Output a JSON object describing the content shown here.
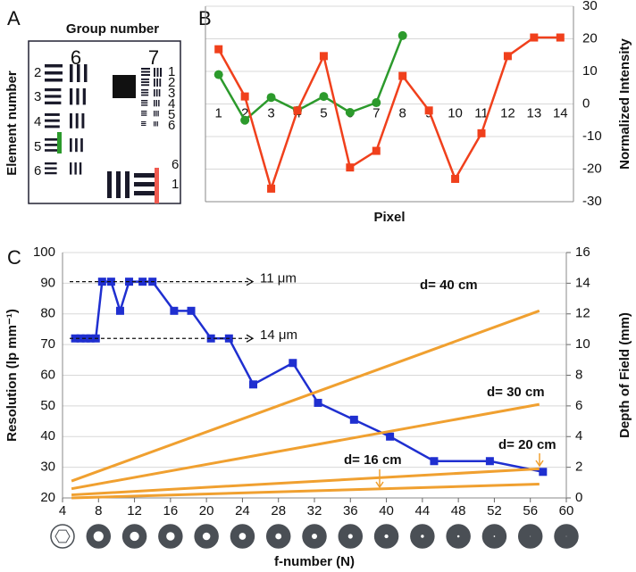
{
  "panel_a": {
    "label": "A",
    "title": "Group number",
    "y_label": "Element number",
    "groups": [
      "6",
      "7"
    ],
    "elements_6": [
      "2",
      "3",
      "4",
      "5",
      "6"
    ],
    "elements_7": [
      "1",
      "2",
      "3",
      "4",
      "5",
      "6"
    ],
    "elements_corner": [
      "6",
      "1"
    ]
  },
  "chart_data": [
    {
      "type": "line",
      "label": "B",
      "x_label": "Pixel",
      "y2_label": "Normalized Intensity",
      "categories": [
        "1",
        "2",
        "3",
        "4",
        "5",
        "6",
        "7",
        "8",
        "9",
        "10",
        "11",
        "12",
        "13",
        "14"
      ],
      "y2lim": [
        -30,
        30
      ],
      "y2ticks": [
        -30,
        -20,
        -10,
        0,
        10,
        20,
        30
      ],
      "grid": true,
      "series": [
        {
          "color": "#2c9a2c",
          "marker": "circle",
          "axis": "y2",
          "values": [
            9,
            -5,
            2,
            -2,
            2.3,
            -2.6,
            0.4,
            21,
            null,
            null,
            null,
            null,
            null,
            null
          ]
        },
        {
          "color": "#f0401c",
          "marker": "square",
          "axis": "y2",
          "values": [
            16.8,
            2.3,
            -26,
            -2,
            14.7,
            -19.5,
            -14.4,
            8.6,
            -2,
            -23,
            -9,
            14.7,
            20.4,
            20.4
          ]
        }
      ]
    },
    {
      "type": "line",
      "label": "C",
      "x_label": "f-number (N)",
      "y_label": "Resolution (lp mm⁻¹)",
      "y2_label": "Depth of Field (mm)",
      "xlim": [
        4,
        60
      ],
      "xticks": [
        4,
        8,
        12,
        16,
        20,
        24,
        28,
        32,
        36,
        40,
        44,
        48,
        52,
        56,
        60
      ],
      "ylim": [
        20,
        100
      ],
      "yticks": [
        20,
        30,
        40,
        50,
        60,
        70,
        80,
        90,
        100
      ],
      "y2lim": [
        0,
        16
      ],
      "y2ticks": [
        0,
        2,
        4,
        6,
        8,
        10,
        12,
        14,
        16
      ],
      "grid": true,
      "annotations": [
        "11 μm",
        "14 μm"
      ],
      "series": [
        {
          "color": "#1f2fd0",
          "marker": "square",
          "x": [
            5.4,
            6.0,
            6.6,
            7.1,
            7.7,
            8.4,
            9.4,
            10.4,
            11.4,
            12.9,
            14.0,
            16.4,
            18.3,
            20.5,
            22.5,
            25.2,
            29.6,
            32.4,
            36.4,
            40.4,
            45.3,
            51.5,
            57.4
          ],
          "values": [
            72,
            72,
            72,
            72,
            72,
            90.5,
            90.5,
            81,
            90.5,
            90.5,
            90.5,
            81,
            81,
            72,
            72,
            57,
            64,
            51,
            45.5,
            40,
            32,
            32,
            28.5
          ]
        },
        {
          "name": "d= 40 cm",
          "color": "#f0a030",
          "marker": "none",
          "axis": "y2",
          "x": [
            5,
            57
          ],
          "values": [
            1.1,
            12.2
          ]
        },
        {
          "name": "d= 30 cm",
          "color": "#f0a030",
          "marker": "none",
          "axis": "y2",
          "x": [
            5,
            57
          ],
          "values": [
            0.6,
            6.1
          ]
        },
        {
          "name": "d= 20 cm",
          "color": "#f0a030",
          "marker": "none",
          "axis": "y2",
          "x": [
            5,
            57
          ],
          "values": [
            0.2,
            1.9
          ]
        },
        {
          "name": "d= 16 cm",
          "color": "#f0a030",
          "marker": "none",
          "axis": "y2",
          "x": [
            5,
            57
          ],
          "values": [
            0,
            0.9
          ]
        }
      ]
    }
  ]
}
